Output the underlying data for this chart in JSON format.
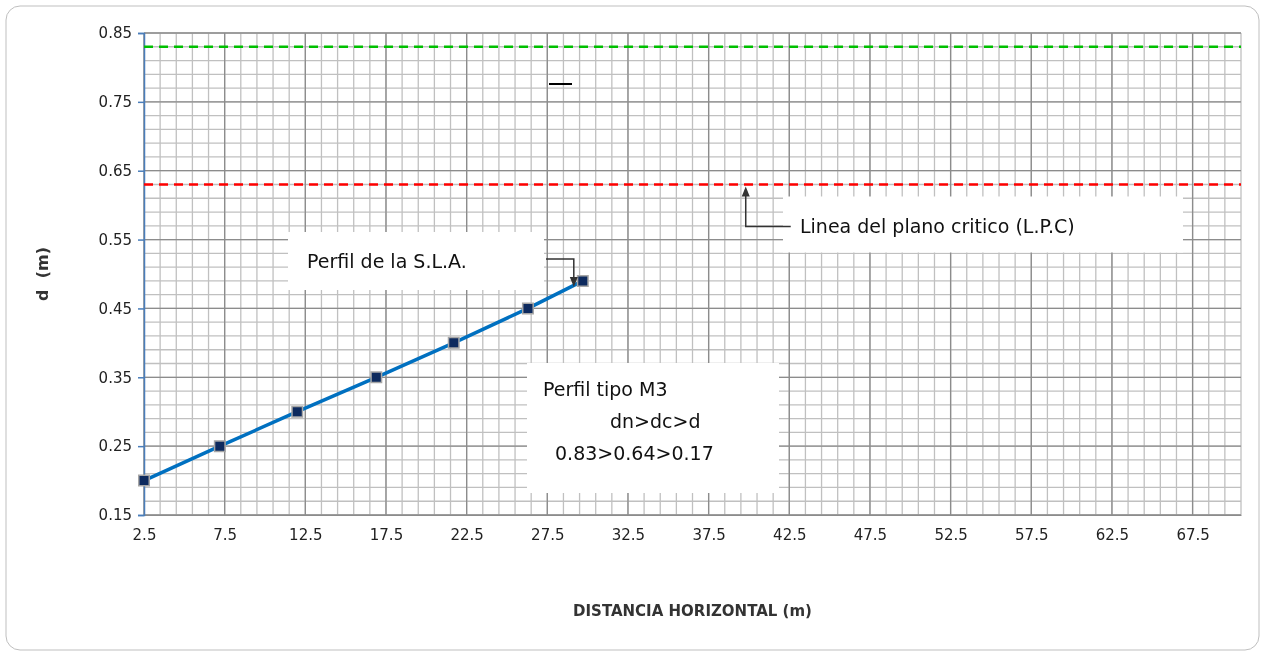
{
  "chart_data": {
    "type": "line",
    "xlabel": "DISTANCIA HORIZONTAL (m)",
    "ylabel": "d  (m)",
    "x": [
      2.5,
      7.2,
      12.0,
      16.9,
      21.7,
      26.3,
      29.7
    ],
    "series": [
      {
        "color": "#0070c0",
        "values": [
          0.2,
          0.25,
          0.3,
          0.35,
          0.4,
          0.45,
          0.49
        ]
      }
    ],
    "xlim": [
      2.5,
      70.5
    ],
    "xticks": [
      2.5,
      7.5,
      12.5,
      17.5,
      22.5,
      27.5,
      32.5,
      37.5,
      42.5,
      47.5,
      52.5,
      57.5,
      62.5,
      67.5
    ],
    "ylim": [
      0.15,
      0.85
    ],
    "yticks": [
      {
        "value": 0.15,
        "label": "0.15"
      },
      {
        "value": 0.25,
        "label": "0.25"
      },
      {
        "value": 0.35,
        "label": "0.35"
      },
      {
        "value": 0.45,
        "label": "0.45"
      },
      {
        "value": 0.55,
        "label": "0.55"
      },
      {
        "value": 0.65,
        "label": "0.65"
      },
      {
        "value": 0.75,
        "label": "0.75"
      },
      {
        "value": 0.85,
        "label": "0.85"
      }
    ],
    "grid": true,
    "marker": "square",
    "line_style": "solid",
    "ref_lines": [
      {
        "axis": "y",
        "value": 0.83,
        "color": "#00c000",
        "line_style": "dashed"
      },
      {
        "axis": "y",
        "value": 0.63,
        "color": "#ff0000",
        "line_style": "dashed",
        "label": "Linea del plano critico (L.P.C)"
      }
    ],
    "annotations": [
      "Perfil de la S.L.A.",
      "Perfil tipo M3\ndn>dc>d\n0.83>0.64>0.17"
    ]
  }
}
